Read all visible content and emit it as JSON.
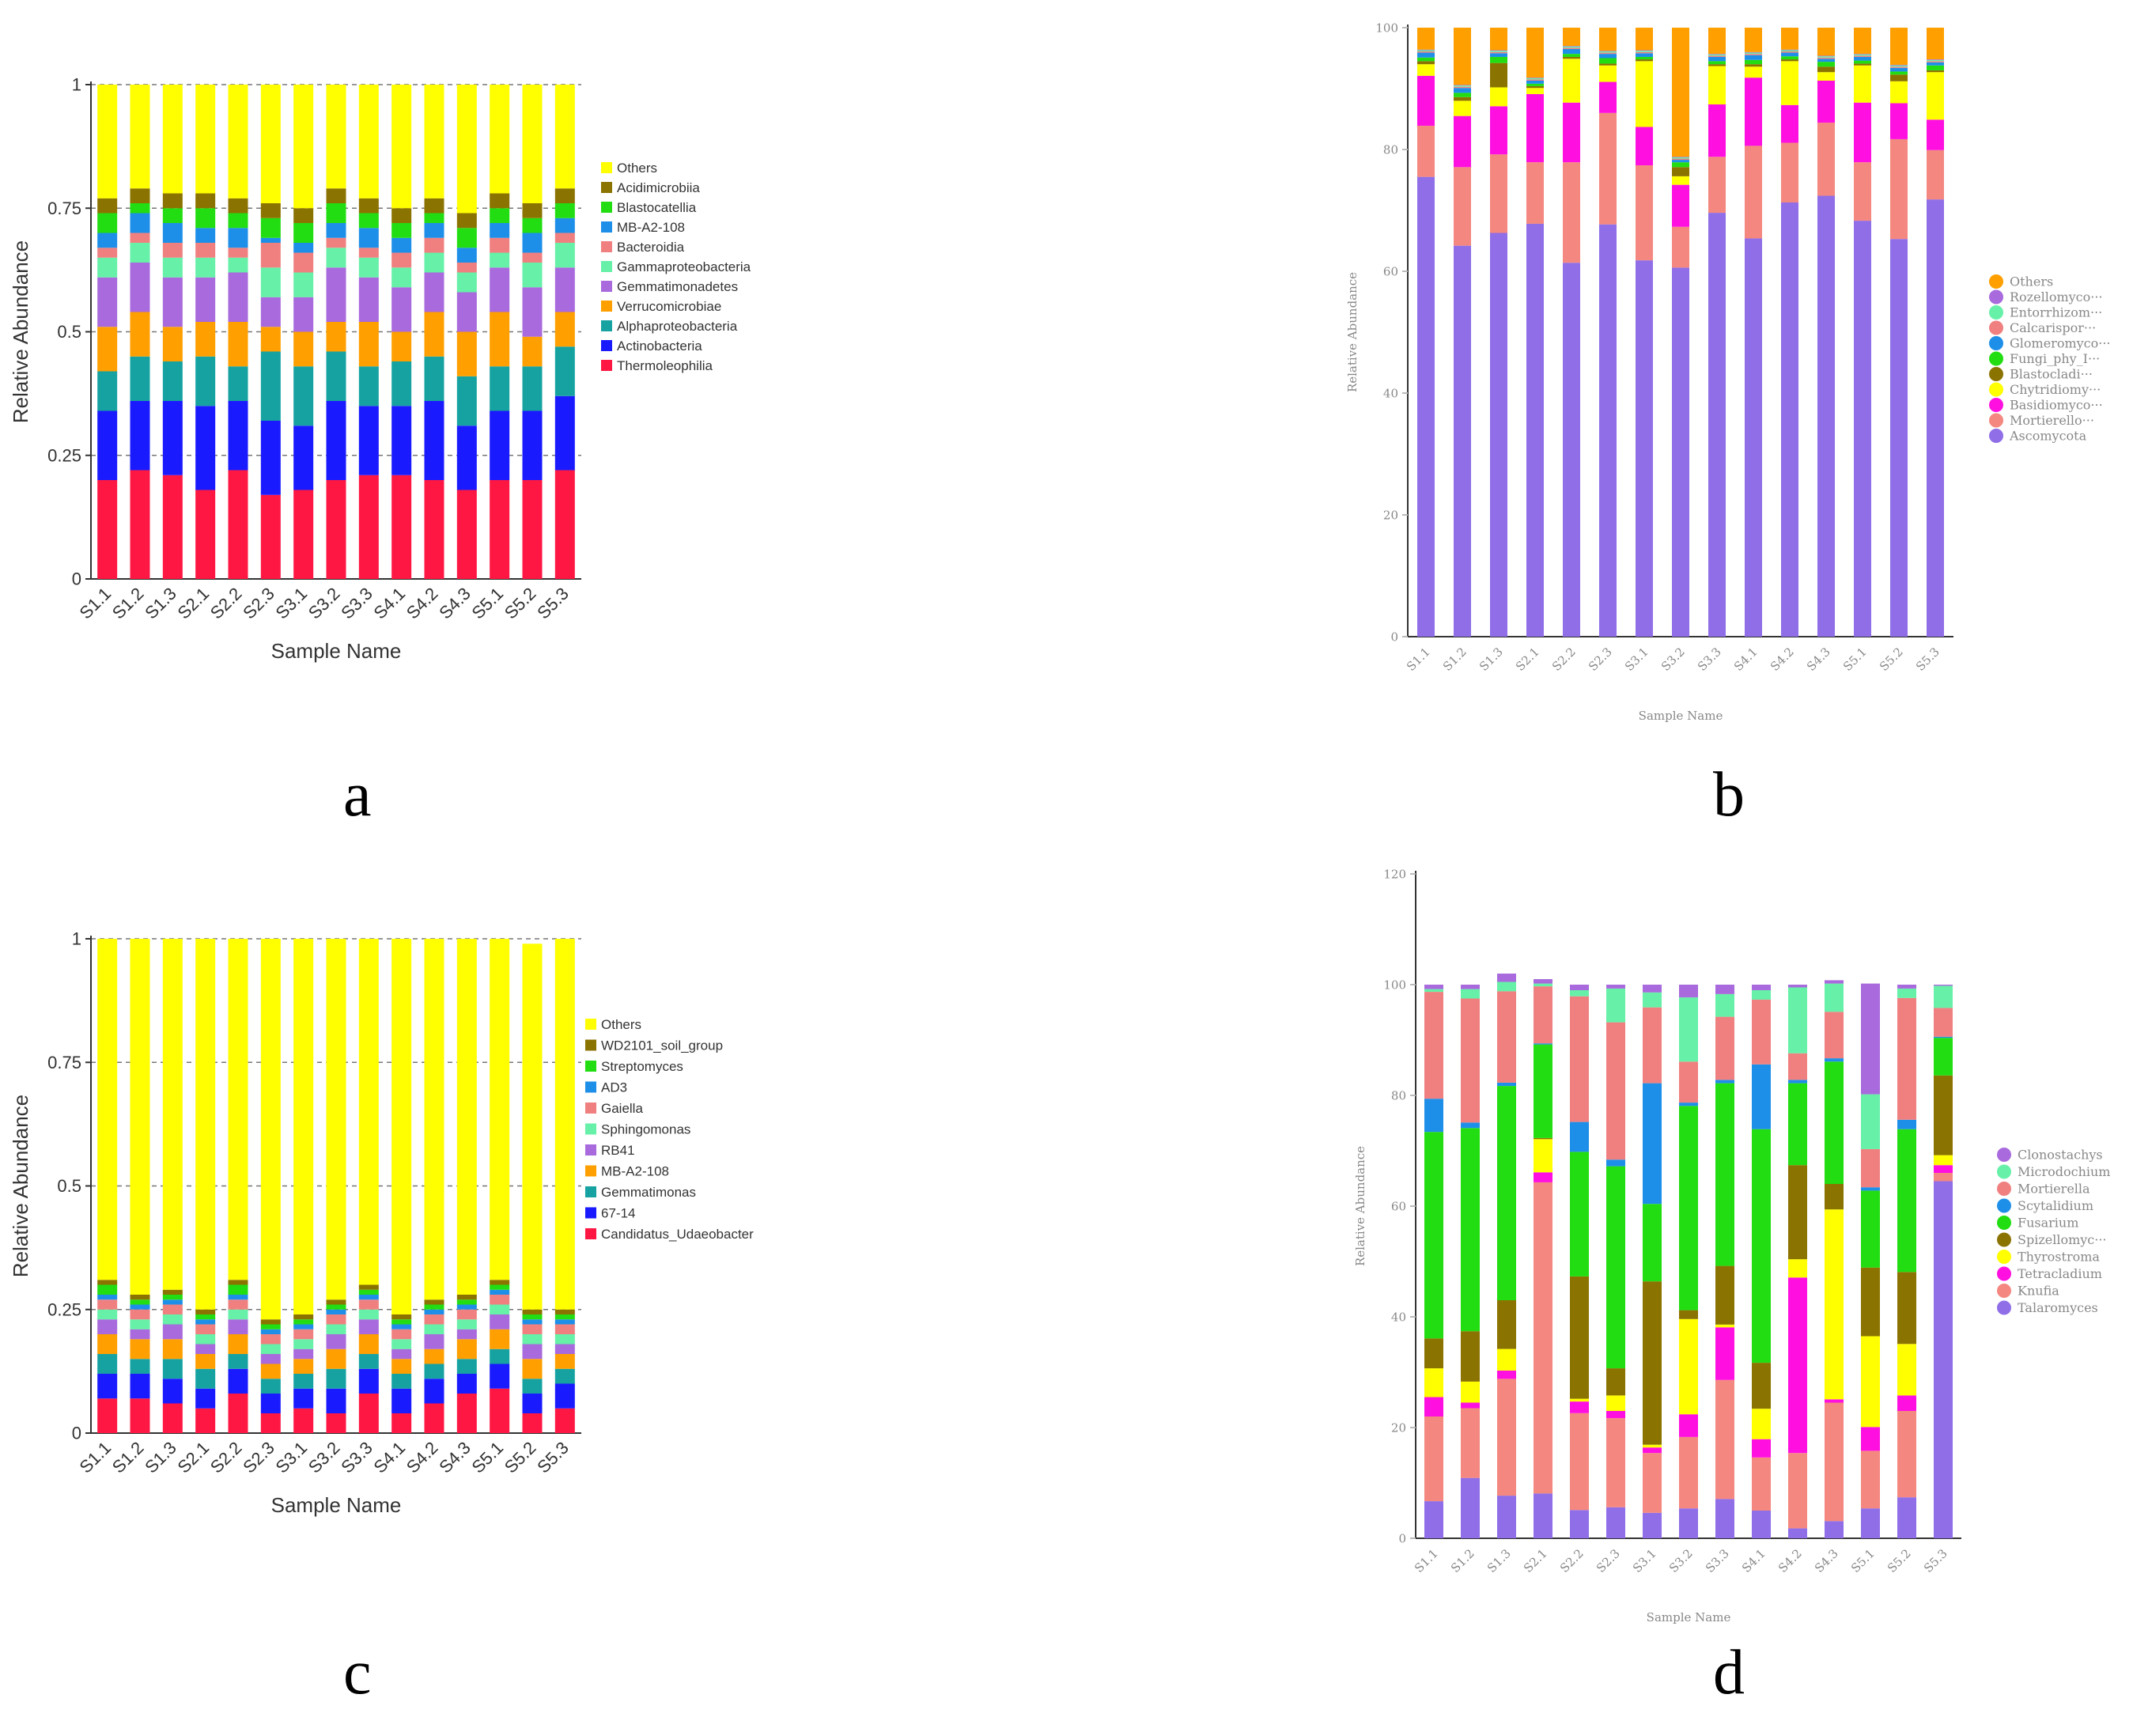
{
  "panel_labels": [
    "a",
    "b",
    "c",
    "d"
  ],
  "chart_data": [
    {
      "type": "bar",
      "stacked": true,
      "xlabel": "Sample Name",
      "ylabel": "Relative Abundance",
      "ylim": [
        0,
        1
      ],
      "yticks": [
        "0",
        "0.25",
        "0.5",
        "0.75",
        "1"
      ],
      "ytick_values": [
        0,
        0.25,
        0.5,
        0.75,
        1
      ],
      "grid": "dashed",
      "legend_position": "right",
      "categories": [
        "S1.1",
        "S1.2",
        "S1.3",
        "S2.1",
        "S2.2",
        "S2.3",
        "S3.1",
        "S3.2",
        "S3.3",
        "S4.1",
        "S4.2",
        "S4.3",
        "S5.1",
        "S5.2",
        "S5.3"
      ],
      "series": [
        {
          "name": "Thermoleophilia",
          "color": "#ff1744",
          "values": [
            0.2,
            0.22,
            0.21,
            0.18,
            0.22,
            0.17,
            0.18,
            0.2,
            0.21,
            0.21,
            0.2,
            0.18,
            0.2,
            0.2,
            0.22
          ]
        },
        {
          "name": "Actinobacteria",
          "color": "#1a1aff",
          "values": [
            0.14,
            0.14,
            0.15,
            0.17,
            0.14,
            0.15,
            0.13,
            0.16,
            0.14,
            0.14,
            0.16,
            0.13,
            0.14,
            0.14,
            0.15
          ]
        },
        {
          "name": "Alphaproteobacteria",
          "color": "#17a2a2",
          "values": [
            0.08,
            0.09,
            0.08,
            0.1,
            0.07,
            0.14,
            0.12,
            0.1,
            0.08,
            0.09,
            0.09,
            0.1,
            0.09,
            0.09,
            0.1
          ]
        },
        {
          "name": "Verrucomicrobiae",
          "color": "#ff9f00",
          "values": [
            0.09,
            0.09,
            0.07,
            0.07,
            0.09,
            0.05,
            0.07,
            0.06,
            0.09,
            0.06,
            0.09,
            0.09,
            0.11,
            0.06,
            0.07
          ]
        },
        {
          "name": "Gemmatimonadetes",
          "color": "#a86adc",
          "values": [
            0.1,
            0.1,
            0.1,
            0.09,
            0.1,
            0.06,
            0.07,
            0.11,
            0.09,
            0.09,
            0.08,
            0.08,
            0.09,
            0.1,
            0.09
          ]
        },
        {
          "name": "Gammaproteobacteria",
          "color": "#66f0a8",
          "values": [
            0.04,
            0.04,
            0.04,
            0.04,
            0.03,
            0.06,
            0.05,
            0.04,
            0.04,
            0.04,
            0.04,
            0.04,
            0.03,
            0.05,
            0.05
          ]
        },
        {
          "name": "Bacteroidia",
          "color": "#f08080",
          "values": [
            0.02,
            0.02,
            0.03,
            0.03,
            0.02,
            0.05,
            0.04,
            0.02,
            0.02,
            0.03,
            0.03,
            0.02,
            0.03,
            0.02,
            0.02
          ]
        },
        {
          "name": "MB-A2-108",
          "color": "#1e8fe8",
          "values": [
            0.03,
            0.04,
            0.04,
            0.03,
            0.04,
            0.01,
            0.02,
            0.03,
            0.04,
            0.03,
            0.03,
            0.03,
            0.03,
            0.04,
            0.03
          ]
        },
        {
          "name": "Blastocatellia",
          "color": "#22dd11",
          "values": [
            0.04,
            0.02,
            0.03,
            0.04,
            0.03,
            0.04,
            0.04,
            0.04,
            0.03,
            0.03,
            0.02,
            0.04,
            0.03,
            0.03,
            0.03
          ]
        },
        {
          "name": "Acidimicrobiia",
          "color": "#8b7300",
          "values": [
            0.03,
            0.03,
            0.03,
            0.03,
            0.03,
            0.03,
            0.03,
            0.03,
            0.03,
            0.03,
            0.03,
            0.03,
            0.03,
            0.03,
            0.03
          ]
        },
        {
          "name": "Others",
          "color": "#ffff00",
          "values": [
            0.23,
            0.21,
            0.22,
            0.22,
            0.23,
            0.24,
            0.25,
            0.21,
            0.23,
            0.25,
            0.23,
            0.26,
            0.22,
            0.24,
            0.21
          ]
        }
      ]
    },
    {
      "type": "bar",
      "stacked": true,
      "xlabel": "Sample Name",
      "ylabel": "Relative Abundance",
      "ylim": [
        0,
        100
      ],
      "yticks": [
        "0",
        "20",
        "40",
        "60",
        "80",
        "100"
      ],
      "ytick_values": [
        0,
        20,
        40,
        60,
        80,
        100
      ],
      "grid": "none",
      "legend_position": "right",
      "categories": [
        "S1.1",
        "S1.2",
        "S1.3",
        "S2.1",
        "S2.2",
        "S2.3",
        "S3.1",
        "S3.2",
        "S3.3",
        "S4.1",
        "S4.2",
        "S4.3",
        "S5.1",
        "S5.2",
        "S5.3"
      ],
      "series": [
        {
          "name": "Ascomycota",
          "color": "#8f6ee8",
          "values": [
            75.5,
            64.2,
            66.3,
            67.8,
            61.4,
            67.7,
            61.8,
            60.6,
            69.6,
            65.4,
            71.3,
            72.4,
            68.3,
            65.3,
            71.8
          ]
        },
        {
          "name": "Mortierello···",
          "color": "#f4877f",
          "values": [
            8.4,
            12.9,
            12.9,
            10.1,
            16.5,
            18.3,
            15.6,
            6.7,
            9.2,
            15.2,
            9.8,
            12.0,
            9.6,
            16.4,
            8.1
          ]
        },
        {
          "name": "Basidiomyco···",
          "color": "#ff10e0",
          "values": [
            8.2,
            8.4,
            7.9,
            11.2,
            9.8,
            5.1,
            6.3,
            6.9,
            8.6,
            11.2,
            6.2,
            6.9,
            9.8,
            5.9,
            5.0
          ]
        },
        {
          "name": "Chytridiomy···",
          "color": "#ffff00",
          "values": [
            1.9,
            2.5,
            3.1,
            1.0,
            7.2,
            2.7,
            10.8,
            1.4,
            6.3,
            1.8,
            7.2,
            1.4,
            6.1,
            3.6,
            7.8
          ]
        },
        {
          "name": "Blastocladi···",
          "color": "#8b7300",
          "values": [
            0.5,
            0.6,
            4.0,
            0.3,
            0.3,
            0.3,
            0.3,
            1.5,
            0.3,
            0.4,
            0.3,
            0.9,
            0.3,
            1.1,
            0.3
          ]
        },
        {
          "name": "Fungi_phy_I···",
          "color": "#22dd11",
          "values": [
            0.6,
            0.7,
            1.0,
            0.4,
            0.5,
            0.9,
            0.4,
            0.8,
            0.5,
            0.7,
            0.5,
            0.8,
            0.5,
            0.5,
            0.8
          ]
        },
        {
          "name": "Glomeromyco···",
          "color": "#1e8fe8",
          "values": [
            0.8,
            0.8,
            0.6,
            0.5,
            0.8,
            0.7,
            0.6,
            0.4,
            0.7,
            0.8,
            0.6,
            0.5,
            0.6,
            0.6,
            0.5
          ]
        },
        {
          "name": "Calcarispor···",
          "color": "#f08080",
          "values": [
            0.2,
            0.2,
            0.2,
            0.2,
            0.2,
            0.2,
            0.2,
            0.2,
            0.2,
            0.2,
            0.2,
            0.2,
            0.2,
            0.2,
            0.2
          ]
        },
        {
          "name": "Entorrhizom···",
          "color": "#66f0a8",
          "values": [
            0.2,
            0.2,
            0.2,
            0.2,
            0.2,
            0.2,
            0.2,
            0.2,
            0.2,
            0.2,
            0.2,
            0.2,
            0.2,
            0.2,
            0.2
          ]
        },
        {
          "name": "Rozellomyco···",
          "color": "#a86adc",
          "values": [
            0.1,
            0.1,
            0.1,
            0.1,
            0.1,
            0.1,
            0.1,
            0.1,
            0.1,
            0.1,
            0.1,
            0.1,
            0.1,
            0.1,
            0.1
          ]
        },
        {
          "name": "Others",
          "color": "#ff9f00",
          "values": [
            3.6,
            9.4,
            3.7,
            8.2,
            3.0,
            3.8,
            3.7,
            21.2,
            4.3,
            4.0,
            3.6,
            4.6,
            4.3,
            6.1,
            5.2
          ]
        }
      ]
    },
    {
      "type": "bar",
      "stacked": true,
      "xlabel": "Sample Name",
      "ylabel": "Relative Abundance",
      "ylim": [
        0,
        1
      ],
      "yticks": [
        "0",
        "0.25",
        "0.5",
        "0.75",
        "1"
      ],
      "ytick_values": [
        0,
        0.25,
        0.5,
        0.75,
        1
      ],
      "grid": "dashed",
      "legend_position": "right",
      "categories": [
        "S1.1",
        "S1.2",
        "S1.3",
        "S2.1",
        "S2.2",
        "S2.3",
        "S3.1",
        "S3.2",
        "S3.3",
        "S4.1",
        "S4.2",
        "S4.3",
        "S5.1",
        "S5.2",
        "S5.3"
      ],
      "series": [
        {
          "name": "Candidatus_Udaeobacter",
          "color": "#ff1744",
          "values": [
            0.07,
            0.07,
            0.06,
            0.05,
            0.08,
            0.04,
            0.05,
            0.04,
            0.08,
            0.04,
            0.06,
            0.08,
            0.09,
            0.04,
            0.05
          ]
        },
        {
          "name": "67-14",
          "color": "#1a1aff",
          "values": [
            0.05,
            0.05,
            0.05,
            0.04,
            0.05,
            0.04,
            0.04,
            0.05,
            0.05,
            0.05,
            0.05,
            0.04,
            0.05,
            0.04,
            0.05
          ]
        },
        {
          "name": "Gemmatimonas",
          "color": "#17a2a2",
          "values": [
            0.04,
            0.03,
            0.04,
            0.04,
            0.03,
            0.03,
            0.03,
            0.04,
            0.03,
            0.03,
            0.03,
            0.03,
            0.03,
            0.03,
            0.03
          ]
        },
        {
          "name": "MB-A2-108",
          "color": "#ff9f00",
          "values": [
            0.04,
            0.04,
            0.04,
            0.03,
            0.04,
            0.03,
            0.03,
            0.04,
            0.04,
            0.03,
            0.03,
            0.04,
            0.04,
            0.04,
            0.03
          ]
        },
        {
          "name": "RB41",
          "color": "#a86adc",
          "values": [
            0.03,
            0.02,
            0.03,
            0.02,
            0.03,
            0.02,
            0.02,
            0.03,
            0.03,
            0.02,
            0.03,
            0.02,
            0.03,
            0.03,
            0.02
          ]
        },
        {
          "name": "Sphingomonas",
          "color": "#66f0a8",
          "values": [
            0.02,
            0.02,
            0.02,
            0.02,
            0.02,
            0.02,
            0.02,
            0.02,
            0.02,
            0.02,
            0.02,
            0.02,
            0.02,
            0.02,
            0.02
          ]
        },
        {
          "name": "Gaiella",
          "color": "#f08080",
          "values": [
            0.02,
            0.02,
            0.02,
            0.02,
            0.02,
            0.02,
            0.02,
            0.02,
            0.02,
            0.02,
            0.02,
            0.02,
            0.02,
            0.02,
            0.02
          ]
        },
        {
          "name": "AD3",
          "color": "#1e8fe8",
          "values": [
            0.01,
            0.01,
            0.01,
            0.01,
            0.01,
            0.01,
            0.01,
            0.01,
            0.01,
            0.01,
            0.01,
            0.01,
            0.01,
            0.01,
            0.01
          ]
        },
        {
          "name": "Streptomyces",
          "color": "#22dd11",
          "values": [
            0.02,
            0.01,
            0.01,
            0.01,
            0.02,
            0.01,
            0.01,
            0.01,
            0.01,
            0.01,
            0.01,
            0.01,
            0.01,
            0.01,
            0.01
          ]
        },
        {
          "name": "WD2101_soil_group",
          "color": "#8b7300",
          "values": [
            0.01,
            0.01,
            0.01,
            0.01,
            0.01,
            0.01,
            0.01,
            0.01,
            0.01,
            0.01,
            0.01,
            0.01,
            0.01,
            0.01,
            0.01
          ]
        },
        {
          "name": "Others",
          "color": "#ffff00",
          "values": [
            0.69,
            0.72,
            0.71,
            0.75,
            0.69,
            0.77,
            0.76,
            0.73,
            0.7,
            0.76,
            0.73,
            0.72,
            0.69,
            0.74,
            0.75
          ]
        }
      ]
    },
    {
      "type": "bar",
      "stacked": true,
      "xlabel": "Sample Name",
      "ylabel": "Relative Abundance",
      "ylim": [
        0,
        120
      ],
      "yticks": [
        "0",
        "20",
        "40",
        "60",
        "80",
        "100",
        "120"
      ],
      "ytick_values": [
        0,
        20,
        40,
        60,
        80,
        100,
        120
      ],
      "grid": "none",
      "legend_position": "right",
      "categories": [
        "S1.1",
        "S1.2",
        "S1.3",
        "S2.1",
        "S2.2",
        "S2.3",
        "S3.1",
        "S3.2",
        "S3.3",
        "S4.1",
        "S4.2",
        "S4.3",
        "S5.1",
        "S5.2",
        "S5.3"
      ],
      "series": [
        {
          "name": "Talaromyces",
          "color": "#8f6ee8",
          "values": [
            6.7,
            10.9,
            7.7,
            8.1,
            5.1,
            5.6,
            4.6,
            5.4,
            7.1,
            5.0,
            1.8,
            3.1,
            5.4,
            7.4,
            64.5
          ]
        },
        {
          "name": "Knufia",
          "color": "#f4877f",
          "values": [
            15.3,
            12.6,
            21.1,
            56.2,
            17.5,
            16.1,
            10.8,
            12.9,
            21.5,
            9.6,
            13.6,
            21.4,
            10.4,
            15.6,
            1.5
          ]
        },
        {
          "name": "Tetracladium",
          "color": "#ff10e0",
          "values": [
            3.5,
            1.0,
            1.5,
            1.8,
            2.1,
            1.3,
            1.0,
            4.1,
            9.5,
            3.3,
            31.7,
            0.6,
            4.3,
            2.8,
            1.4
          ]
        },
        {
          "name": "Thyrostroma",
          "color": "#ffff00",
          "values": [
            5.2,
            3.8,
            3.9,
            6.0,
            0.5,
            2.8,
            0.5,
            17.2,
            0.5,
            5.5,
            3.3,
            34.3,
            16.4,
            9.3,
            1.8
          ]
        },
        {
          "name": "Spizellomyc···",
          "color": "#8b7300",
          "values": [
            5.4,
            9.1,
            8.8,
            0.2,
            22.1,
            4.9,
            29.5,
            1.6,
            10.6,
            8.3,
            17.0,
            4.6,
            12.4,
            13.0,
            14.4
          ]
        },
        {
          "name": "Fusarium",
          "color": "#22dd11",
          "values": [
            37.3,
            36.7,
            38.7,
            16.9,
            22.5,
            36.5,
            14.0,
            36.9,
            33.0,
            42.2,
            14.8,
            22.1,
            13.9,
            25.8,
            6.8
          ]
        },
        {
          "name": "Scytalidium",
          "color": "#1e8fe8",
          "values": [
            6.0,
            1.0,
            0.6,
            0.2,
            5.4,
            1.2,
            21.8,
            0.6,
            0.6,
            11.7,
            0.6,
            0.6,
            0.6,
            1.7,
            0.2
          ]
        },
        {
          "name": "Mortierella",
          "color": "#f08080",
          "values": [
            19.3,
            22.4,
            16.5,
            10.3,
            22.7,
            24.8,
            13.7,
            7.4,
            11.4,
            11.7,
            4.8,
            8.4,
            6.9,
            22.0,
            5.2
          ]
        },
        {
          "name": "Microdochium",
          "color": "#66f0a8",
          "values": [
            0.5,
            1.7,
            1.7,
            0.5,
            1.1,
            6.1,
            2.7,
            11.6,
            4.1,
            1.7,
            11.9,
            5.1,
            9.9,
            1.7,
            4.0
          ]
        },
        {
          "name": "Clonostachys",
          "color": "#a86adc",
          "values": [
            0.8,
            0.8,
            1.5,
            0.8,
            1.0,
            0.7,
            1.4,
            2.3,
            1.7,
            1.0,
            0.5,
            0.6,
            20.0,
            0.7,
            0.2
          ]
        }
      ]
    }
  ]
}
